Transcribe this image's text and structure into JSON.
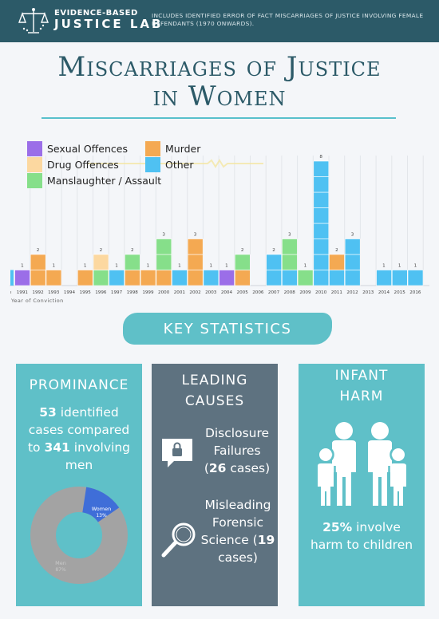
{
  "header": {
    "logo_line1": "EVIDENCE-BASED",
    "logo_line2": "JUSTICE LAB",
    "note": "Includes identified error of fact miscarriages of justice involving female defendants (1970 onwards)."
  },
  "title": {
    "line1": "Miscarriages of Justice",
    "line2": "in Women"
  },
  "colors": {
    "sexual": "#9b6ee8",
    "murder": "#f4a952",
    "drug": "#fcd8a0",
    "manslaughter": "#86df8a",
    "other": "#4fc1f2",
    "teal": "#5fc0c8",
    "slate": "#5e7280",
    "header": "#2c5a68"
  },
  "legend": [
    {
      "label": "Sexual Offences",
      "key": "sexual"
    },
    {
      "label": "Murder",
      "key": "murder"
    },
    {
      "label": "Drug Offences",
      "key": "drug"
    },
    {
      "label": "Other",
      "key": "other"
    },
    {
      "label": "Manslaughter / Assault",
      "key": "manslaughter"
    }
  ],
  "chart_data": {
    "type": "bar",
    "xlabel": "Year of Conviction",
    "categories": [
      "1991",
      "1992",
      "1993",
      "1994",
      "1995",
      "1996",
      "1997",
      "1998",
      "1999",
      "2000",
      "2001",
      "2002",
      "2003",
      "2004",
      "2005",
      "2006",
      "2007",
      "2008",
      "2009",
      "2010",
      "2011",
      "2012",
      "2013",
      "2014",
      "2015",
      "2016"
    ],
    "totals": [
      1,
      2,
      1,
      0,
      1,
      2,
      1,
      2,
      1,
      3,
      1,
      3,
      1,
      1,
      2,
      0,
      2,
      3,
      1,
      8,
      2,
      3,
      0,
      1,
      1,
      1
    ],
    "stacks": [
      [
        "sexual"
      ],
      [
        "murder",
        "murder"
      ],
      [
        "murder"
      ],
      [],
      [
        "murder"
      ],
      [
        "manslaughter",
        "drug"
      ],
      [
        "other"
      ],
      [
        "murder",
        "manslaughter"
      ],
      [
        "murder"
      ],
      [
        "murder",
        "manslaughter",
        "manslaughter"
      ],
      [
        "other"
      ],
      [
        "murder",
        "murder",
        "murder"
      ],
      [
        "other"
      ],
      [
        "sexual"
      ],
      [
        "murder",
        "manslaughter"
      ],
      [],
      [
        "other",
        "other"
      ],
      [
        "other",
        "manslaughter",
        "manslaughter"
      ],
      [
        "manslaughter"
      ],
      [
        "other",
        "other",
        "other",
        "other",
        "other",
        "other",
        "other",
        "other"
      ],
      [
        "other",
        "murder"
      ],
      [
        "other",
        "other",
        "other"
      ],
      [],
      [
        "other"
      ],
      [
        "other"
      ],
      [
        "other"
      ]
    ]
  },
  "key_stats_label": "KEY STATISTICS",
  "prominance": {
    "title": "PROMINANCE",
    "count": "53",
    "text1": " identified cases compared to ",
    "men_count": "341",
    "text2": " involving men",
    "donut": {
      "slices": [
        {
          "label": "Women",
          "value": 13,
          "pct": "13%"
        },
        {
          "label": "Men",
          "value": 87,
          "pct": "87%"
        }
      ]
    }
  },
  "leading": {
    "title1": "LEADING",
    "title2": "CAUSES",
    "item1_text": "Disclosure Failures (",
    "item1_count": "26",
    "item1_tail": " cases)",
    "item2_text": "Misleading Forensic Science (",
    "item2_count": "19",
    "item2_tail": " cases)"
  },
  "infant": {
    "title1": "INFANT",
    "title2": "HARM",
    "pct": "25%",
    "text": " involve harm to children"
  }
}
